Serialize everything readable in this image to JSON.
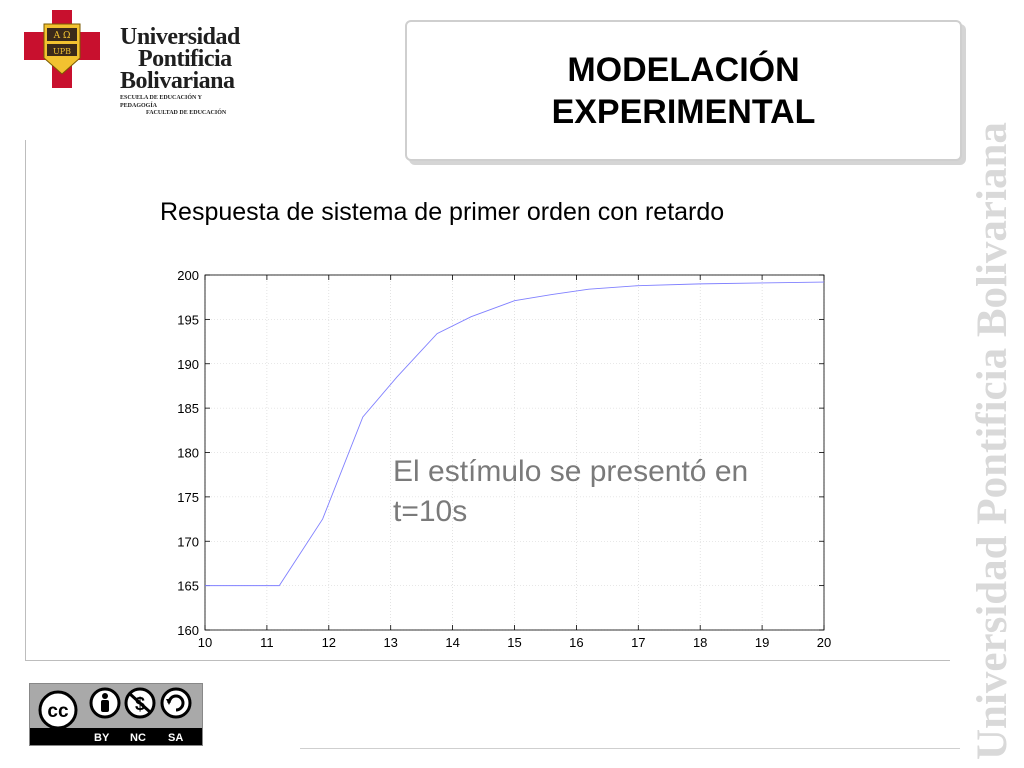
{
  "logo": {
    "line1": "Universidad",
    "line2": "Pontificia",
    "line3": "Bolivariana",
    "sub1": "ESCUELA DE EDUCACIÓN Y PEDAGOGÍA",
    "sub2": "FACULTAD DE EDUCACIÓN",
    "shield_top": "A Ω",
    "shield_bottom": "UPB",
    "colors": {
      "red": "#c8102e",
      "gold": "#f2c230"
    }
  },
  "title": "MODELACIÓN\nEXPERIMENTAL",
  "watermark": "Universidad Pontificia Bolivariana",
  "subtitle": "Respuesta de sistema de primer orden con retardo",
  "annotation": "El estímulo se presentó en t=10s",
  "license": {
    "by": "BY",
    "nc": "NC",
    "sa": "SA",
    "cc": "cc"
  },
  "chart_data": {
    "type": "line",
    "title": "",
    "xlabel": "",
    "ylabel": "",
    "xlim": [
      10,
      20
    ],
    "ylim": [
      160,
      200
    ],
    "xticks": [
      10,
      11,
      12,
      13,
      14,
      15,
      16,
      17,
      18,
      19,
      20
    ],
    "yticks": [
      160,
      165,
      170,
      175,
      180,
      185,
      190,
      195,
      200
    ],
    "grid": true,
    "series": [
      {
        "color": "#8080ff",
        "x": [
          10,
          11.2,
          11.9,
          12.55,
          13.1,
          13.75,
          14.3,
          15.0,
          15.6,
          16.2,
          17.0,
          18.0,
          19.0,
          20.0
        ],
        "y": [
          165,
          165,
          172.5,
          184,
          188.5,
          193.4,
          195.3,
          197.1,
          197.8,
          198.4,
          198.8,
          199.0,
          199.1,
          199.2
        ]
      }
    ]
  }
}
